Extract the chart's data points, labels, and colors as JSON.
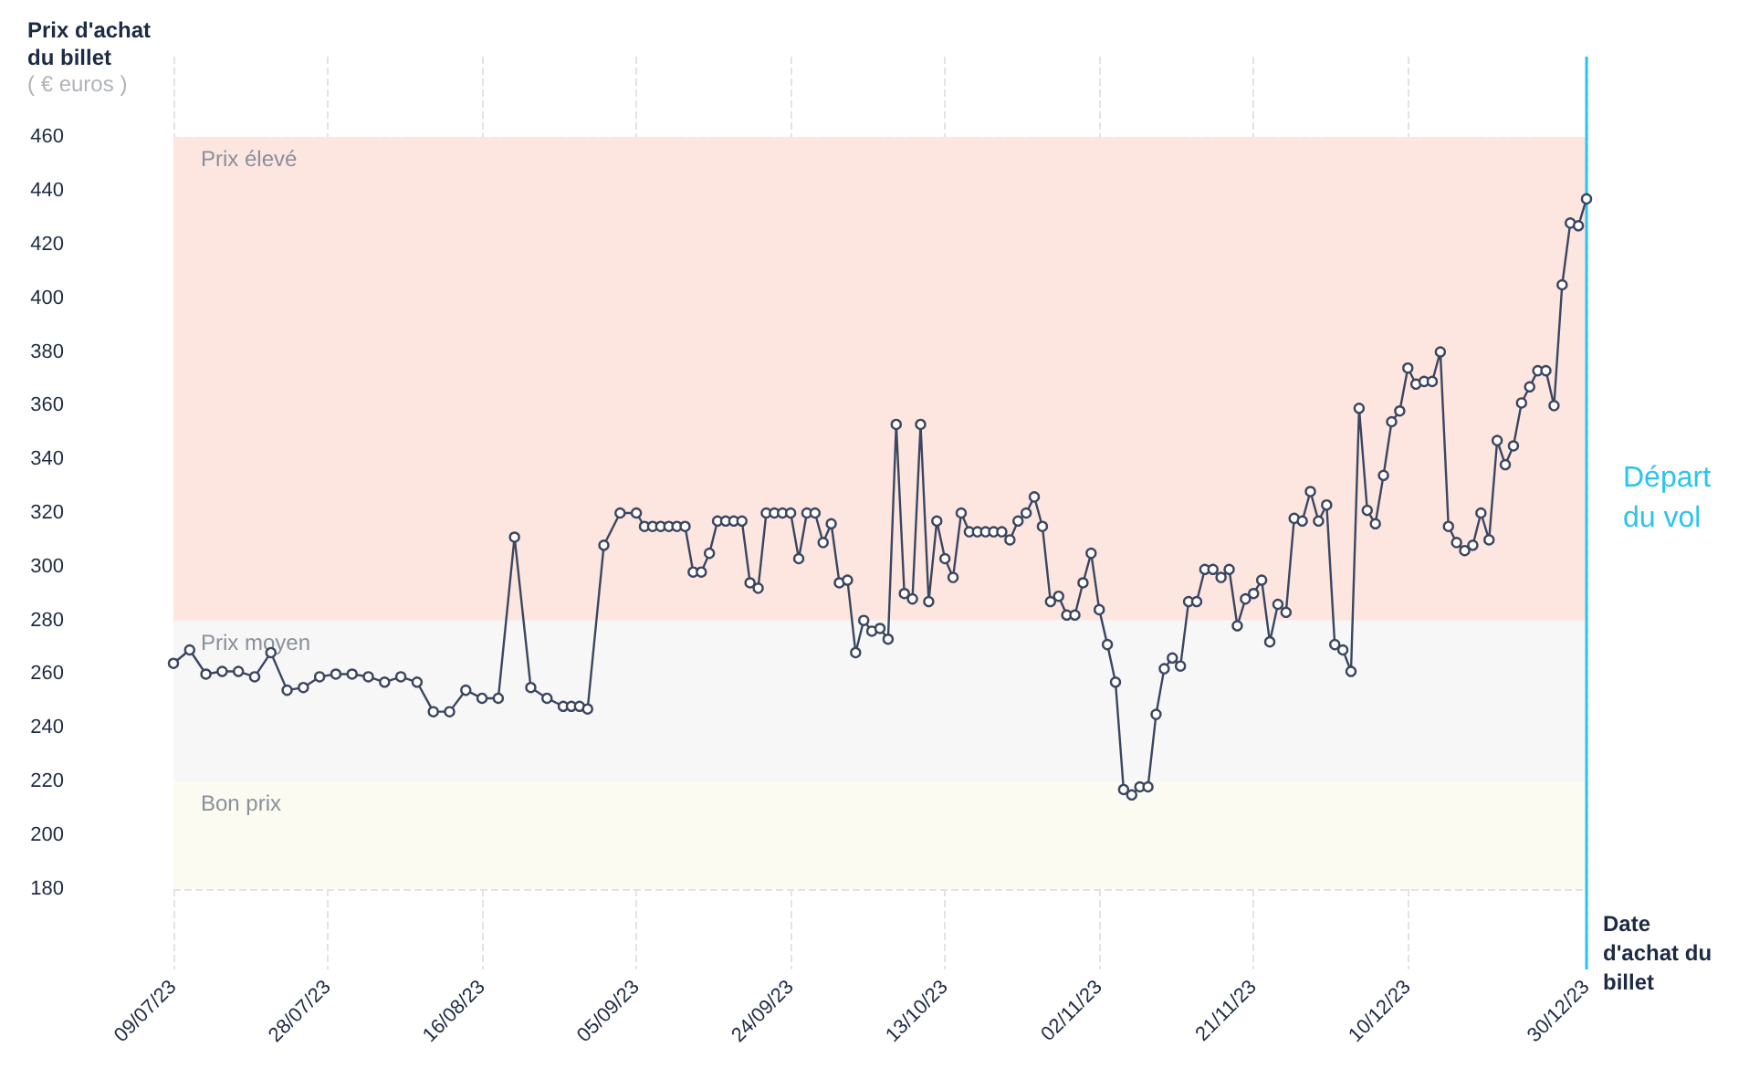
{
  "chart_data": {
    "type": "line",
    "ylabel": "Prix d'achat du billet",
    "xlabel": "Date d'achat du billet",
    "annotations": [
      "( € euros )"
    ],
    "x": [
      "2023-07-09",
      "2023-07-11",
      "2023-07-13",
      "2023-07-15",
      "2023-07-17",
      "2023-07-19",
      "2023-07-21",
      "2023-07-23",
      "2023-07-25",
      "2023-07-27",
      "2023-07-29",
      "2023-07-31",
      "2023-08-02",
      "2023-08-04",
      "2023-08-06",
      "2023-08-08",
      "2023-08-10",
      "2023-08-12",
      "2023-08-14",
      "2023-08-16",
      "2023-08-18",
      "2023-08-20",
      "2023-08-22",
      "2023-08-24",
      "2023-08-26",
      "2023-08-27",
      "2023-08-28",
      "2023-08-29",
      "2023-08-31",
      "2023-09-02",
      "2023-09-04",
      "2023-09-05",
      "2023-09-06",
      "2023-09-07",
      "2023-09-08",
      "2023-09-09",
      "2023-09-10",
      "2023-09-11",
      "2023-09-12",
      "2023-09-13",
      "2023-09-14",
      "2023-09-15",
      "2023-09-16",
      "2023-09-17",
      "2023-09-18",
      "2023-09-19",
      "2023-09-20",
      "2023-09-21",
      "2023-09-22",
      "2023-09-23",
      "2023-09-24",
      "2023-09-25",
      "2023-09-26",
      "2023-09-27",
      "2023-09-28",
      "2023-09-29",
      "2023-09-30",
      "2023-10-01",
      "2023-10-02",
      "2023-10-03",
      "2023-10-04",
      "2023-10-05",
      "2023-10-06",
      "2023-10-07",
      "2023-10-08",
      "2023-10-09",
      "2023-10-10",
      "2023-10-11",
      "2023-10-12",
      "2023-10-13",
      "2023-10-14",
      "2023-10-15",
      "2023-10-16",
      "2023-10-17",
      "2023-10-18",
      "2023-10-19",
      "2023-10-20",
      "2023-10-21",
      "2023-10-22",
      "2023-10-23",
      "2023-10-24",
      "2023-10-25",
      "2023-10-26",
      "2023-10-27",
      "2023-10-28",
      "2023-10-29",
      "2023-10-30",
      "2023-10-31",
      "2023-11-01",
      "2023-11-02",
      "2023-11-03",
      "2023-11-04",
      "2023-11-05",
      "2023-11-06",
      "2023-11-07",
      "2023-11-08",
      "2023-11-09",
      "2023-11-10",
      "2023-11-11",
      "2023-11-12",
      "2023-11-13",
      "2023-11-14",
      "2023-11-15",
      "2023-11-16",
      "2023-11-17",
      "2023-11-18",
      "2023-11-19",
      "2023-11-20",
      "2023-11-21",
      "2023-11-22",
      "2023-11-23",
      "2023-11-24",
      "2023-11-25",
      "2023-11-26",
      "2023-11-27",
      "2023-11-28",
      "2023-11-29",
      "2023-11-30",
      "2023-12-01",
      "2023-12-02",
      "2023-12-03",
      "2023-12-04",
      "2023-12-05",
      "2023-12-06",
      "2023-12-07",
      "2023-12-08",
      "2023-12-09",
      "2023-12-10",
      "2023-12-11",
      "2023-12-12",
      "2023-12-13",
      "2023-12-14",
      "2023-12-15",
      "2023-12-16",
      "2023-12-17",
      "2023-12-18",
      "2023-12-19",
      "2023-12-20",
      "2023-12-21",
      "2023-12-22",
      "2023-12-23",
      "2023-12-24",
      "2023-12-25",
      "2023-12-26",
      "2023-12-27",
      "2023-12-28",
      "2023-12-29",
      "2023-12-30"
    ],
    "series": [
      {
        "color": "#3b4660",
        "values": [
          264,
          269,
          260,
          261,
          261,
          259,
          268,
          254,
          255,
          259,
          260,
          260,
          259,
          257,
          259,
          257,
          246,
          246,
          254,
          251,
          251,
          311,
          255,
          251,
          248,
          248,
          248,
          247,
          308,
          320,
          320,
          315,
          315,
          315,
          315,
          315,
          315,
          298,
          298,
          305,
          317,
          317,
          317,
          317,
          294,
          292,
          320,
          320,
          320,
          320,
          303,
          320,
          320,
          309,
          316,
          294,
          295,
          268,
          280,
          276,
          277,
          273,
          353,
          290,
          288,
          353,
          287,
          317,
          303,
          296,
          320,
          313,
          313,
          313,
          313,
          313,
          310,
          317,
          320,
          326,
          315,
          287,
          289,
          282,
          282,
          294,
          305,
          284,
          271,
          257,
          217,
          215,
          218,
          218,
          245,
          262,
          266,
          263,
          287,
          287,
          299,
          299,
          296,
          299,
          278,
          288,
          290,
          295,
          272,
          286,
          283,
          318,
          317,
          328,
          317,
          323,
          271,
          269,
          261,
          359,
          321,
          316,
          334,
          354,
          358,
          374,
          368,
          369,
          369,
          380,
          315,
          309,
          306,
          308,
          320,
          310,
          347,
          338,
          345,
          361,
          367,
          373,
          373,
          360,
          405,
          428,
          427,
          437
        ]
      }
    ],
    "xlim": [
      "2023-07-09",
      "2023-12-30"
    ],
    "xticks": [
      {
        "value": "2023-07-09",
        "label": "09/07/23"
      },
      {
        "value": "2023-07-28",
        "label": "28/07/23"
      },
      {
        "value": "2023-08-16",
        "label": "16/08/23"
      },
      {
        "value": "2023-09-04",
        "label": "05/09/23"
      },
      {
        "value": "2023-09-23",
        "label": "24/09/23"
      },
      {
        "value": "2023-10-12",
        "label": "13/10/23"
      },
      {
        "value": "2023-10-31",
        "label": "02/11/23"
      },
      {
        "value": "2023-11-19",
        "label": "21/11/23"
      },
      {
        "value": "2023-12-08",
        "label": "10/12/23"
      },
      {
        "value": "2023-12-30",
        "label": "30/12/23"
      }
    ],
    "ylim": [
      150,
      490
    ],
    "yticks": [
      180,
      200,
      220,
      240,
      260,
      280,
      300,
      320,
      340,
      360,
      380,
      400,
      420,
      440,
      460
    ],
    "bands": [
      {
        "axis": "y",
        "from": 280,
        "to": 460,
        "label": "Prix élevé",
        "color": "#fde6e0"
      },
      {
        "axis": "y",
        "from": 220,
        "to": 280,
        "label": "Prix moyen",
        "color": "#f7f7f7"
      },
      {
        "axis": "y",
        "from": 180,
        "to": 220,
        "label": "Bon prix",
        "color": "#fbfbf2"
      }
    ],
    "ref_lines": [
      {
        "axis": "x",
        "value": "2023-12-30",
        "label": "Départ du vol",
        "color": "#29c4f0",
        "line_style": "solid"
      }
    ],
    "grid": true,
    "marker": "circle",
    "line_style": "solid"
  }
}
